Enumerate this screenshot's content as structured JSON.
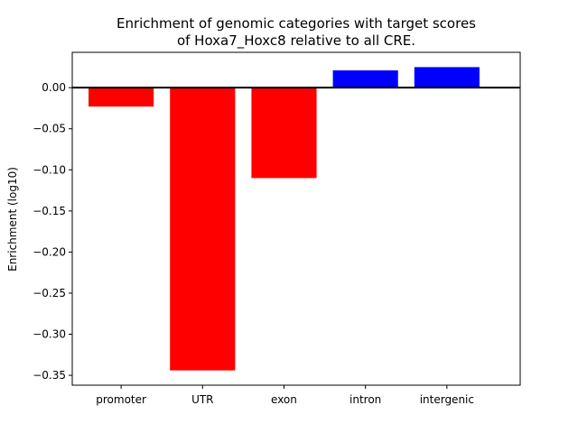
{
  "chart_data": {
    "type": "bar",
    "title_lines": [
      "Enrichment of genomic categories with target scores",
      "of Hoxa7_Hoxc8 relative to all CRE."
    ],
    "xlabel": "",
    "ylabel": "Enrichment (log10)",
    "categories": [
      "promoter",
      "UTR",
      "exon",
      "intron",
      "intergenic"
    ],
    "values": [
      -0.023,
      -0.344,
      -0.11,
      0.021,
      0.025
    ],
    "bar_colors": [
      "#ff0000",
      "#ff0000",
      "#ff0000",
      "#0000ff",
      "#0000ff"
    ],
    "ylim": [
      -0.362,
      0.043
    ],
    "yticks": [
      0.0,
      -0.05,
      -0.1,
      -0.15,
      -0.2,
      -0.25,
      -0.3,
      -0.35
    ],
    "ytick_labels": [
      "0.00",
      "−0.05",
      "−0.10",
      "−0.15",
      "−0.20",
      "−0.25",
      "−0.30",
      "−0.35"
    ],
    "zero_line": true,
    "grid": false
  }
}
